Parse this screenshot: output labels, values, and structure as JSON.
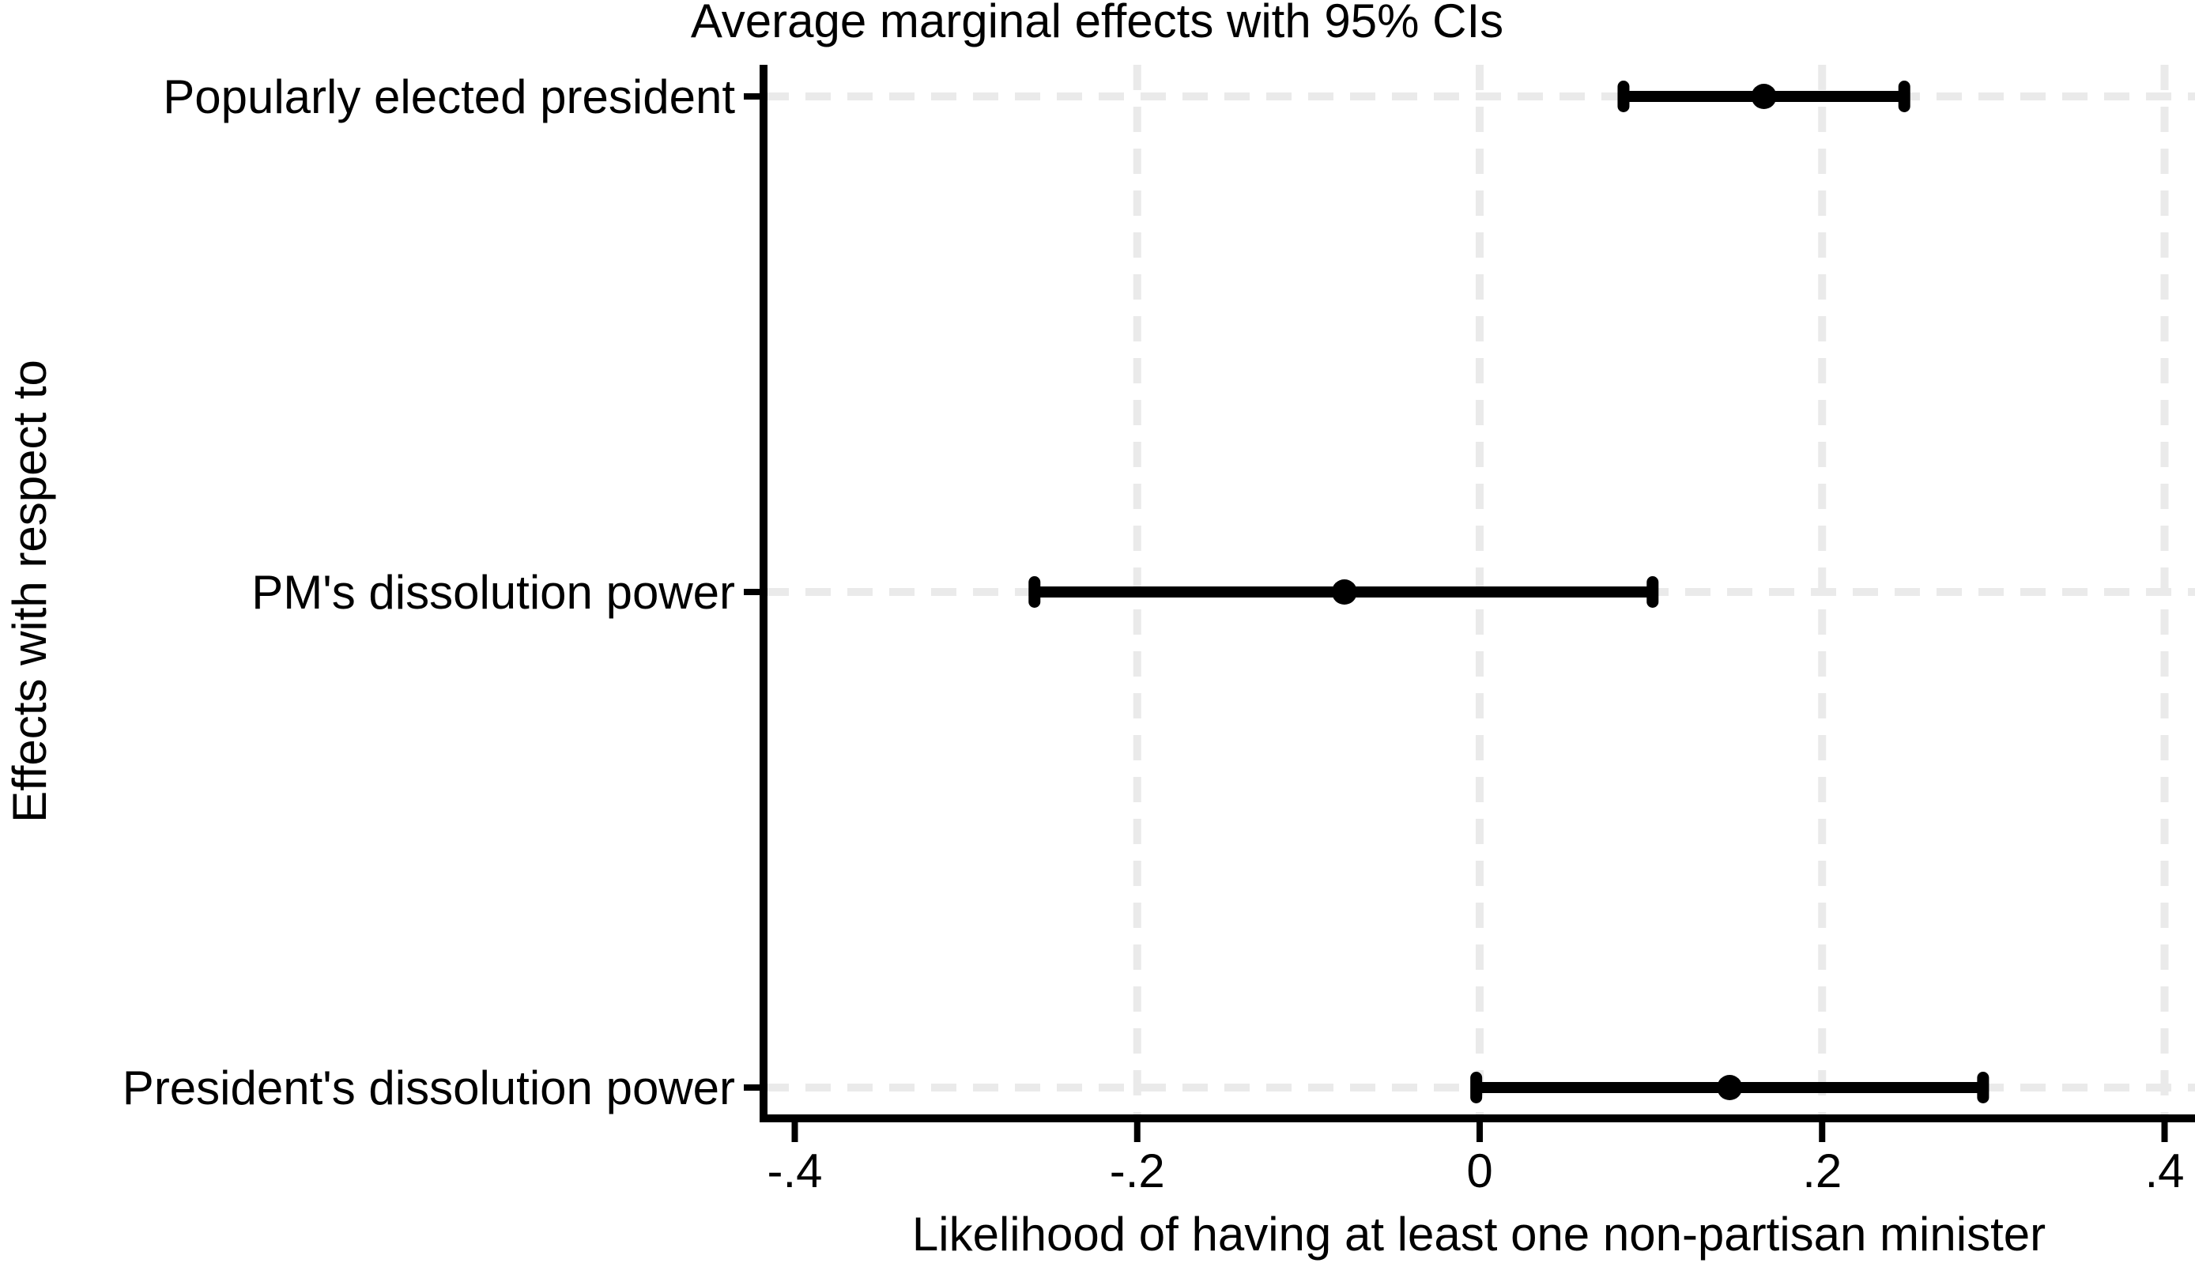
{
  "figure": {
    "background_color": "#ffffff",
    "text_color": "#000000",
    "grid_color": "#eaeaea",
    "marker_color": "#000000"
  },
  "chart_data": {
    "type": "scatter",
    "subtype": "coefficient-plot-with-ci",
    "title": "Average marginal effects with 95% CIs",
    "xlabel": "Likelihood of having at least one non-partisan minister",
    "ylabel": "Effects with respect to",
    "orientation": "horizontal",
    "ci_level": "95%",
    "categories": [
      "Popularly elected president",
      "PM's dissolution power",
      "President's dissolution power"
    ],
    "series": [
      {
        "name": "Average marginal effect",
        "estimates": [
          0.166,
          -0.079,
          0.146
        ],
        "ci_low": [
          0.084,
          -0.26,
          -0.002
        ],
        "ci_high": [
          0.248,
          0.101,
          0.294
        ]
      }
    ],
    "xlim": [
      -0.418,
      0.418
    ],
    "xticks": [
      -0.4,
      -0.2,
      0,
      0.2,
      0.4
    ],
    "xtick_labels": [
      "-.4",
      "-.2",
      "0",
      ".2",
      ".4"
    ],
    "grid": {
      "style": "dashed",
      "vertical_gridlines_at": [
        -0.2,
        0,
        0.2,
        0.4
      ],
      "horizontal_gridlines": "one per category row"
    },
    "legend": "none"
  }
}
